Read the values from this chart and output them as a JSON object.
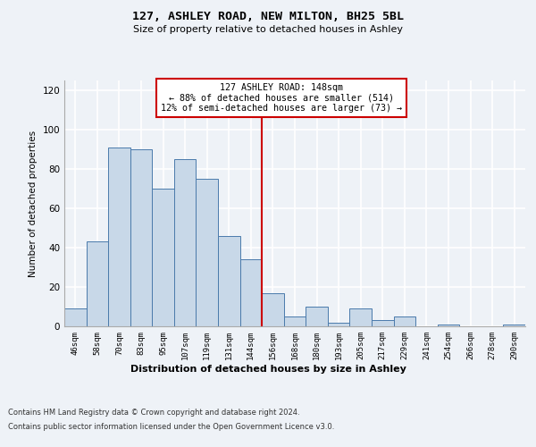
{
  "title": "127, ASHLEY ROAD, NEW MILTON, BH25 5BL",
  "subtitle": "Size of property relative to detached houses in Ashley",
  "xlabel": "Distribution of detached houses by size in Ashley",
  "ylabel": "Number of detached properties",
  "bar_color": "#c8d8e8",
  "bar_edge_color": "#4a7aab",
  "categories": [
    "46sqm",
    "58sqm",
    "70sqm",
    "83sqm",
    "95sqm",
    "107sqm",
    "119sqm",
    "131sqm",
    "144sqm",
    "156sqm",
    "168sqm",
    "180sqm",
    "193sqm",
    "205sqm",
    "217sqm",
    "229sqm",
    "241sqm",
    "254sqm",
    "266sqm",
    "278sqm",
    "290sqm"
  ],
  "values": [
    9,
    43,
    91,
    90,
    70,
    85,
    75,
    46,
    34,
    17,
    5,
    10,
    2,
    9,
    3,
    5,
    0,
    1,
    0,
    0,
    1
  ],
  "ylim": [
    0,
    125
  ],
  "yticks": [
    0,
    20,
    40,
    60,
    80,
    100,
    120
  ],
  "property_line_x": 8.5,
  "annotation_text": "127 ASHLEY ROAD: 148sqm\n← 88% of detached houses are smaller (514)\n12% of semi-detached houses are larger (73) →",
  "footer_line1": "Contains HM Land Registry data © Crown copyright and database right 2024.",
  "footer_line2": "Contains public sector information licensed under the Open Government Licence v3.0.",
  "background_color": "#eef2f7",
  "grid_color": "#ffffff",
  "annotation_box_color": "#ffffff",
  "annotation_border_color": "#cc0000",
  "line_color": "#cc0000"
}
